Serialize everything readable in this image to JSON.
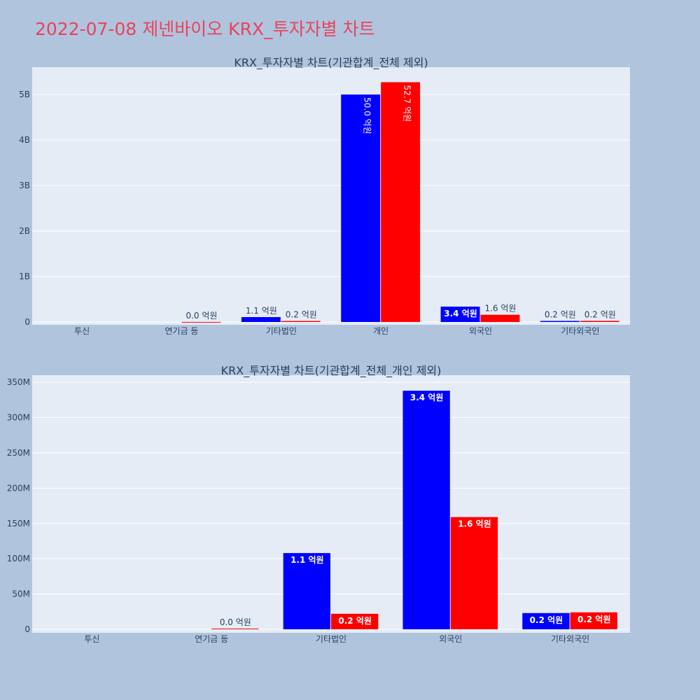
{
  "title": "2022-07-08 제넨바이오 KRX_투자자별 차트",
  "colors": {
    "buy": "#0000ff",
    "sell": "#ff0000",
    "plot_bg": "#e5ecf6",
    "page_bg": "#b0c4de",
    "title": "#e8445a"
  },
  "chart_data": [
    {
      "type": "bar",
      "title": "KRX_투자자별 차트(기관합계_전체 제외)",
      "categories": [
        "투신",
        "연기금 등",
        "기타법인",
        "개인",
        "외국인",
        "기타외국인"
      ],
      "ylim": [
        0,
        5600000000
      ],
      "yticks": [
        0,
        1000000000,
        2000000000,
        3000000000,
        4000000000,
        5000000000
      ],
      "ytick_labels": [
        "0",
        "1B",
        "2B",
        "3B",
        "4B",
        "5B"
      ],
      "grid": true,
      "series": [
        {
          "values": [
            0,
            0,
            108000000,
            5000000000,
            338000000,
            23000000
          ],
          "labels": [
            "",
            "",
            "1.1 억원",
            "50.0 억원",
            "3.4 억원",
            "0.2 억원"
          ]
        },
        {
          "values": [
            0,
            1000000,
            22000000,
            5270000000,
            159000000,
            24000000
          ],
          "labels": [
            "",
            "0.0 억원",
            "0.2 억원",
            "52.7 억원",
            "1.6 억원",
            "0.2 억원"
          ]
        }
      ]
    },
    {
      "type": "bar",
      "title": "KRX_투자자별 차트(기관합계_전체_개인 제외)",
      "categories": [
        "투신",
        "연기금 등",
        "기타법인",
        "외국인",
        "기타외국인"
      ],
      "ylim": [
        0,
        360000000
      ],
      "yticks": [
        0,
        50000000,
        100000000,
        150000000,
        200000000,
        250000000,
        300000000,
        350000000
      ],
      "ytick_labels": [
        "0",
        "50M",
        "100M",
        "150M",
        "200M",
        "250M",
        "300M",
        "350M"
      ],
      "grid": true,
      "series": [
        {
          "values": [
            0,
            0,
            108000000,
            338000000,
            23000000
          ],
          "labels": [
            "",
            "",
            "1.1 억원",
            "3.4 억원",
            "0.2 억원"
          ]
        },
        {
          "values": [
            0,
            1000000,
            22000000,
            159000000,
            24000000
          ],
          "labels": [
            "",
            "0.0 억원",
            "0.2 억원",
            "1.6 억원",
            "0.2 억원"
          ]
        }
      ]
    }
  ]
}
